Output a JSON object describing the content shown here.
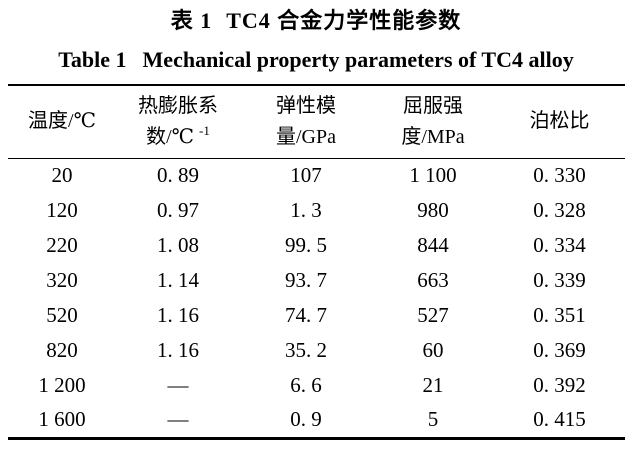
{
  "titles": {
    "zh_label": "表 1",
    "zh_text": "TC4 合金力学性能参数",
    "en_label": "Table 1",
    "en_text": "Mechanical property parameters of TC4 alloy"
  },
  "table": {
    "columns": [
      {
        "id": "temperature",
        "label_lines": [
          "温度/℃"
        ]
      },
      {
        "id": "thermal-expansion",
        "label_lines": [
          "热膨胀系",
          "数/℃"
        ],
        "superscript": "-1"
      },
      {
        "id": "elastic-modulus",
        "label_lines": [
          "弹性模",
          "量/GPa"
        ]
      },
      {
        "id": "yield-strength",
        "label_lines": [
          "屈服强",
          "度/MPa"
        ]
      },
      {
        "id": "poisson-ratio",
        "label_lines": [
          "泊松比"
        ]
      }
    ],
    "rows": [
      [
        "20",
        "0. 89",
        "107",
        "1 100",
        "0. 330"
      ],
      [
        "120",
        "0. 97",
        "1. 3",
        "980",
        "0. 328"
      ],
      [
        "220",
        "1. 08",
        "99. 5",
        "844",
        "0. 334"
      ],
      [
        "320",
        "1. 14",
        "93. 7",
        "663",
        "0. 339"
      ],
      [
        "520",
        "1. 16",
        "74. 7",
        "527",
        "0. 351"
      ],
      [
        "820",
        "1. 16",
        "35. 2",
        "60",
        "0. 369"
      ],
      [
        "1 200",
        "—",
        "6. 6",
        "21",
        "0. 392"
      ],
      [
        "1 600",
        "—",
        "0. 9",
        "5",
        "0. 415"
      ]
    ]
  }
}
